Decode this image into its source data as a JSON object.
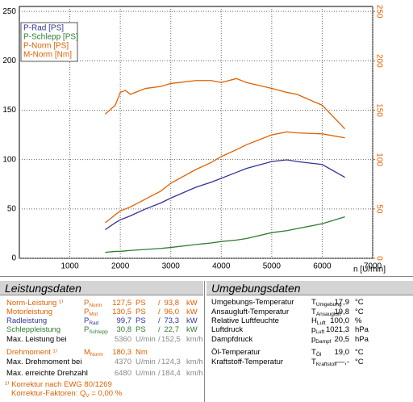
{
  "chart_data": {
    "type": "line",
    "x": [
      1700,
      1900,
      2000,
      2100,
      2200,
      2500,
      2800,
      3000,
      3500,
      3800,
      4000,
      4300,
      4500,
      5000,
      5300,
      5500,
      6000,
      6450
    ],
    "series": [
      {
        "name": "P-Rad [PS]",
        "color": "#333399",
        "values": [
          29,
          36,
          39,
          41,
          43,
          50,
          56,
          61,
          72,
          77,
          81,
          87,
          91,
          98,
          99.7,
          98,
          95,
          82
        ]
      },
      {
        "name": "P-Schlepp [PS]",
        "color": "#2e7d32",
        "values": [
          6,
          7,
          7,
          7.5,
          8,
          9,
          10,
          11,
          14,
          15.5,
          17,
          18.5,
          20,
          26,
          28,
          30,
          35,
          42
        ]
      },
      {
        "name": "P-Norm [PS]",
        "color": "#e06000",
        "values": [
          36,
          44,
          48,
          50,
          52,
          60,
          68,
          76,
          90,
          97,
          103,
          110,
          115,
          125,
          128,
          127,
          126,
          122
        ]
      },
      {
        "name": "M-Norm [Nm]",
        "color": "#e06000",
        "axis": "y2",
        "values": [
          146,
          155,
          168,
          170,
          166,
          172,
          174,
          177,
          180,
          180,
          178,
          182,
          178,
          172,
          168,
          166,
          155,
          131
        ]
      }
    ],
    "xlabel": "n [U/min]",
    "xlim": [
      0,
      7000
    ],
    "xticks": [
      1000,
      2000,
      3000,
      4000,
      5000,
      6000,
      7000
    ],
    "ylim": [
      0,
      255
    ],
    "yticks": [
      0,
      50,
      100,
      150,
      200,
      250
    ],
    "y2lim": [
      0,
      255
    ],
    "y2ticks": [
      0,
      50,
      100,
      150,
      200,
      250
    ],
    "y2color": "#e06000",
    "grid": true,
    "legend": "upper left"
  },
  "leistungsdaten": {
    "title": "Leistungsdaten",
    "rows": [
      {
        "label": "Norm-Leistung ¹⁾",
        "sym": "P",
        "sub": "Norm",
        "v1": "127,5",
        "u1": "PS",
        "sep": "/",
        "v2": "93,8",
        "u2": "kW",
        "color": "#e06000"
      },
      {
        "label": "Motorleistung",
        "sym": "P",
        "sub": "Mot",
        "v1": "130,5",
        "u1": "PS",
        "sep": "/",
        "v2": "96,0",
        "u2": "kW",
        "color": "#e06000"
      },
      {
        "label": "Radleistung",
        "sym": "P",
        "sub": "Rad",
        "v1": "99,7",
        "u1": "PS",
        "sep": "/",
        "v2": "73,3",
        "u2": "kW",
        "color": "#333399"
      },
      {
        "label": "Schleppleistung",
        "sym": "P",
        "sub": "Schlepp",
        "v1": "30,8",
        "u1": "PS",
        "sep": "/",
        "v2": "22,7",
        "u2": "kW",
        "color": "#2e7d32"
      },
      {
        "label": "Max. Leistung bei",
        "v1": "5360",
        "u1": "U/min",
        "sep": "/",
        "v2": "152,5",
        "u2": "km/h",
        "color": "#000000"
      },
      {
        "label": "Drehmoment ¹⁾",
        "sym": "M",
        "sub": "Norm",
        "v1": "180,3",
        "u1": "Nm",
        "color": "#e06000"
      },
      {
        "label": "Max. Drehmoment bei",
        "v1": "4370",
        "u1": "U/min",
        "sep": "/",
        "v2": "124,3",
        "u2": "km/h",
        "color": "#000000"
      },
      {
        "label": "Max. erreichte Drehzahl",
        "v1": "6480",
        "u1": "U/min",
        "sep": "/",
        "v2": "184,4",
        "u2": "km/h",
        "color": "#000000"
      }
    ],
    "footnote": "¹⁾ Korrektur nach EWG 80/1269",
    "factor": {
      "label": "Korrektur-Faktoren: Q",
      "sub": "V",
      "value": "=   0,00 %"
    }
  },
  "umgebungsdaten": {
    "title": "Umgebungsdaten",
    "rows": [
      {
        "label": "Umgebungs-Temperatur",
        "sym": "T",
        "sub": "Umgebung",
        "value": "17,9",
        "unit": "°C"
      },
      {
        "label": "Ansaugluft-Temperatur",
        "sym": "T",
        "sub": "Ansaugluft",
        "value": "19,8",
        "unit": "°C"
      },
      {
        "label": "Relative Luftfeuchte",
        "sym": "H",
        "sub": "Luft",
        "value": "100,0",
        "unit": "%"
      },
      {
        "label": "Luftdruck",
        "sym": "p",
        "sub": "Luft",
        "value": "1021,3",
        "unit": "hPa"
      },
      {
        "label": "Dampfdruck",
        "sym": "p",
        "sub": "Dampf",
        "value": "20,5",
        "unit": "hPa"
      },
      {
        "label": "Öl-Temperatur",
        "sym": "T",
        "sub": "Öl",
        "value": "19,0",
        "unit": "°C"
      },
      {
        "label": "Kraftstoff-Temperatur",
        "sym": "T",
        "sub": "Kraftstoff",
        "value": "—,-",
        "unit": "°C"
      }
    ]
  }
}
